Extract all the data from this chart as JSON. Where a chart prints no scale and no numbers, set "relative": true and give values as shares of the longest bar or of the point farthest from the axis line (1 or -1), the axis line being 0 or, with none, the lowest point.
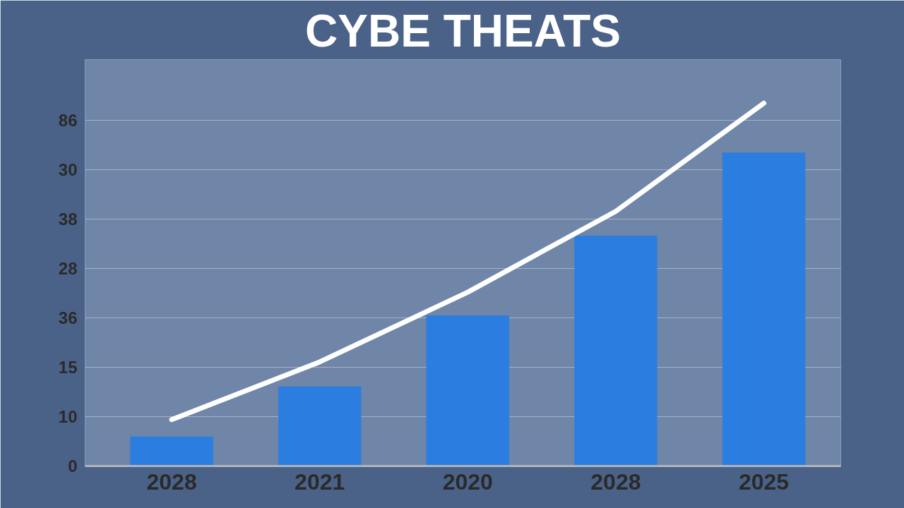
{
  "chart_data": {
    "type": "bar",
    "title": "CYBE THEATS",
    "relative": true,
    "categories": [
      "2028",
      "2021",
      "2020",
      "2028",
      "2025"
    ],
    "values": [
      0.081,
      0.219,
      0.415,
      0.635,
      0.864
    ],
    "color": "#2b7de0",
    "series": [
      {
        "type": "line",
        "color": "#ffffff",
        "values": [
          0.128,
          0.287,
          0.479,
          0.702,
          1
        ]
      }
    ],
    "annotations": [
      "0",
      "10",
      "15",
      "36",
      "28",
      "38",
      "30",
      "86"
    ],
    "grid": "y"
  }
}
